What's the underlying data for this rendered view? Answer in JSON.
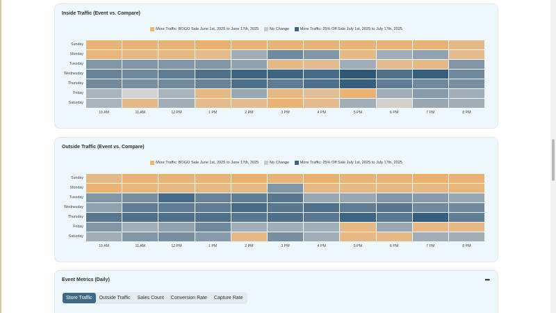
{
  "legend": {
    "item1": "More Traffic: BOGO Sale June 1st, 2025 to June 17th, 2025",
    "item2": "No Change",
    "item3": "More Traffic: 25% Off Sale July 1st, 2025 to July 17th, 2025",
    "colors": [
      "#f0b46a",
      "#c9c9c9",
      "#3e627d"
    ]
  },
  "days": [
    "Sunday",
    "Monday",
    "Tuesday",
    "Wednesday",
    "Thursday",
    "Friday",
    "Saturday"
  ],
  "hours": [
    "10 AM",
    "11 AM",
    "12 PM",
    "1 PM",
    "2 PM",
    "3 PM",
    "4 PM",
    "5 PM",
    "6 PM",
    "7 PM",
    "8 PM"
  ],
  "inside": {
    "title": "Inside Traffic (Event vs. Compare)",
    "matrix": [
      [
        0.55,
        0.55,
        0.55,
        0.65,
        0.55,
        0.55,
        0.55,
        0.55,
        0.55,
        0.55,
        0.45
      ],
      [
        0.5,
        0.45,
        0.45,
        0.4,
        -0.3,
        -0.6,
        -0.5,
        0.45,
        -0.3,
        -0.4,
        0.4
      ],
      [
        -0.5,
        -0.5,
        -0.5,
        -0.5,
        -0.4,
        0.45,
        0.4,
        -0.3,
        0.4,
        0.45,
        -0.5
      ],
      [
        -0.65,
        -0.6,
        -0.7,
        -0.8,
        -0.9,
        -0.9,
        -0.85,
        -1.0,
        -0.8,
        -0.95,
        -0.6
      ],
      [
        -0.6,
        -0.55,
        -0.6,
        -0.65,
        -0.8,
        -0.7,
        -0.8,
        -0.95,
        -0.7,
        -0.6,
        -0.55
      ],
      [
        -0.25,
        0.0,
        -0.25,
        0.45,
        -0.35,
        0.45,
        0.35,
        0.55,
        -0.3,
        -0.45,
        -0.3
      ],
      [
        -0.25,
        0.45,
        -0.3,
        0.4,
        0.4,
        0.55,
        0.4,
        -0.3,
        0.05,
        -0.35,
        -0.3
      ]
    ]
  },
  "outside": {
    "title": "Outside Traffic (Event vs. Compare)",
    "matrix": [
      [
        0.45,
        0.55,
        0.55,
        0.55,
        0.6,
        0.55,
        0.6,
        0.55,
        0.55,
        0.65,
        0.55
      ],
      [
        0.55,
        0.5,
        0.45,
        0.45,
        0.45,
        -0.5,
        0.45,
        0.45,
        0.45,
        0.45,
        0.5
      ],
      [
        -0.5,
        -0.55,
        -0.85,
        -0.65,
        -0.7,
        -0.75,
        -0.35,
        -0.35,
        -0.5,
        -0.45,
        -0.35
      ],
      [
        -0.4,
        -0.7,
        -0.7,
        -0.7,
        -0.85,
        -0.75,
        -0.8,
        -0.7,
        -0.75,
        -0.6,
        -0.6
      ],
      [
        -0.75,
        -0.8,
        -0.8,
        -0.8,
        -0.75,
        -0.8,
        -0.75,
        -0.9,
        -0.75,
        -0.95,
        -0.7
      ],
      [
        -0.5,
        -0.3,
        -0.4,
        -0.6,
        -0.3,
        -0.3,
        -0.3,
        0.45,
        -0.35,
        0.45,
        0.45
      ],
      [
        -0.3,
        -0.5,
        -0.55,
        -0.45,
        0.45,
        -0.55,
        -0.3,
        0.45,
        0.45,
        -0.3,
        -0.3
      ]
    ]
  },
  "metrics": {
    "title": "Event Metrics (Daily)",
    "menu_icon": "more-horizontal-icon",
    "menu_glyph": "•••",
    "tabs": [
      "Store Traffic",
      "Outside Traffic",
      "Sales Count",
      "Conversion Rate",
      "Capture Rate"
    ],
    "active_tab": "Store Traffic"
  }
}
